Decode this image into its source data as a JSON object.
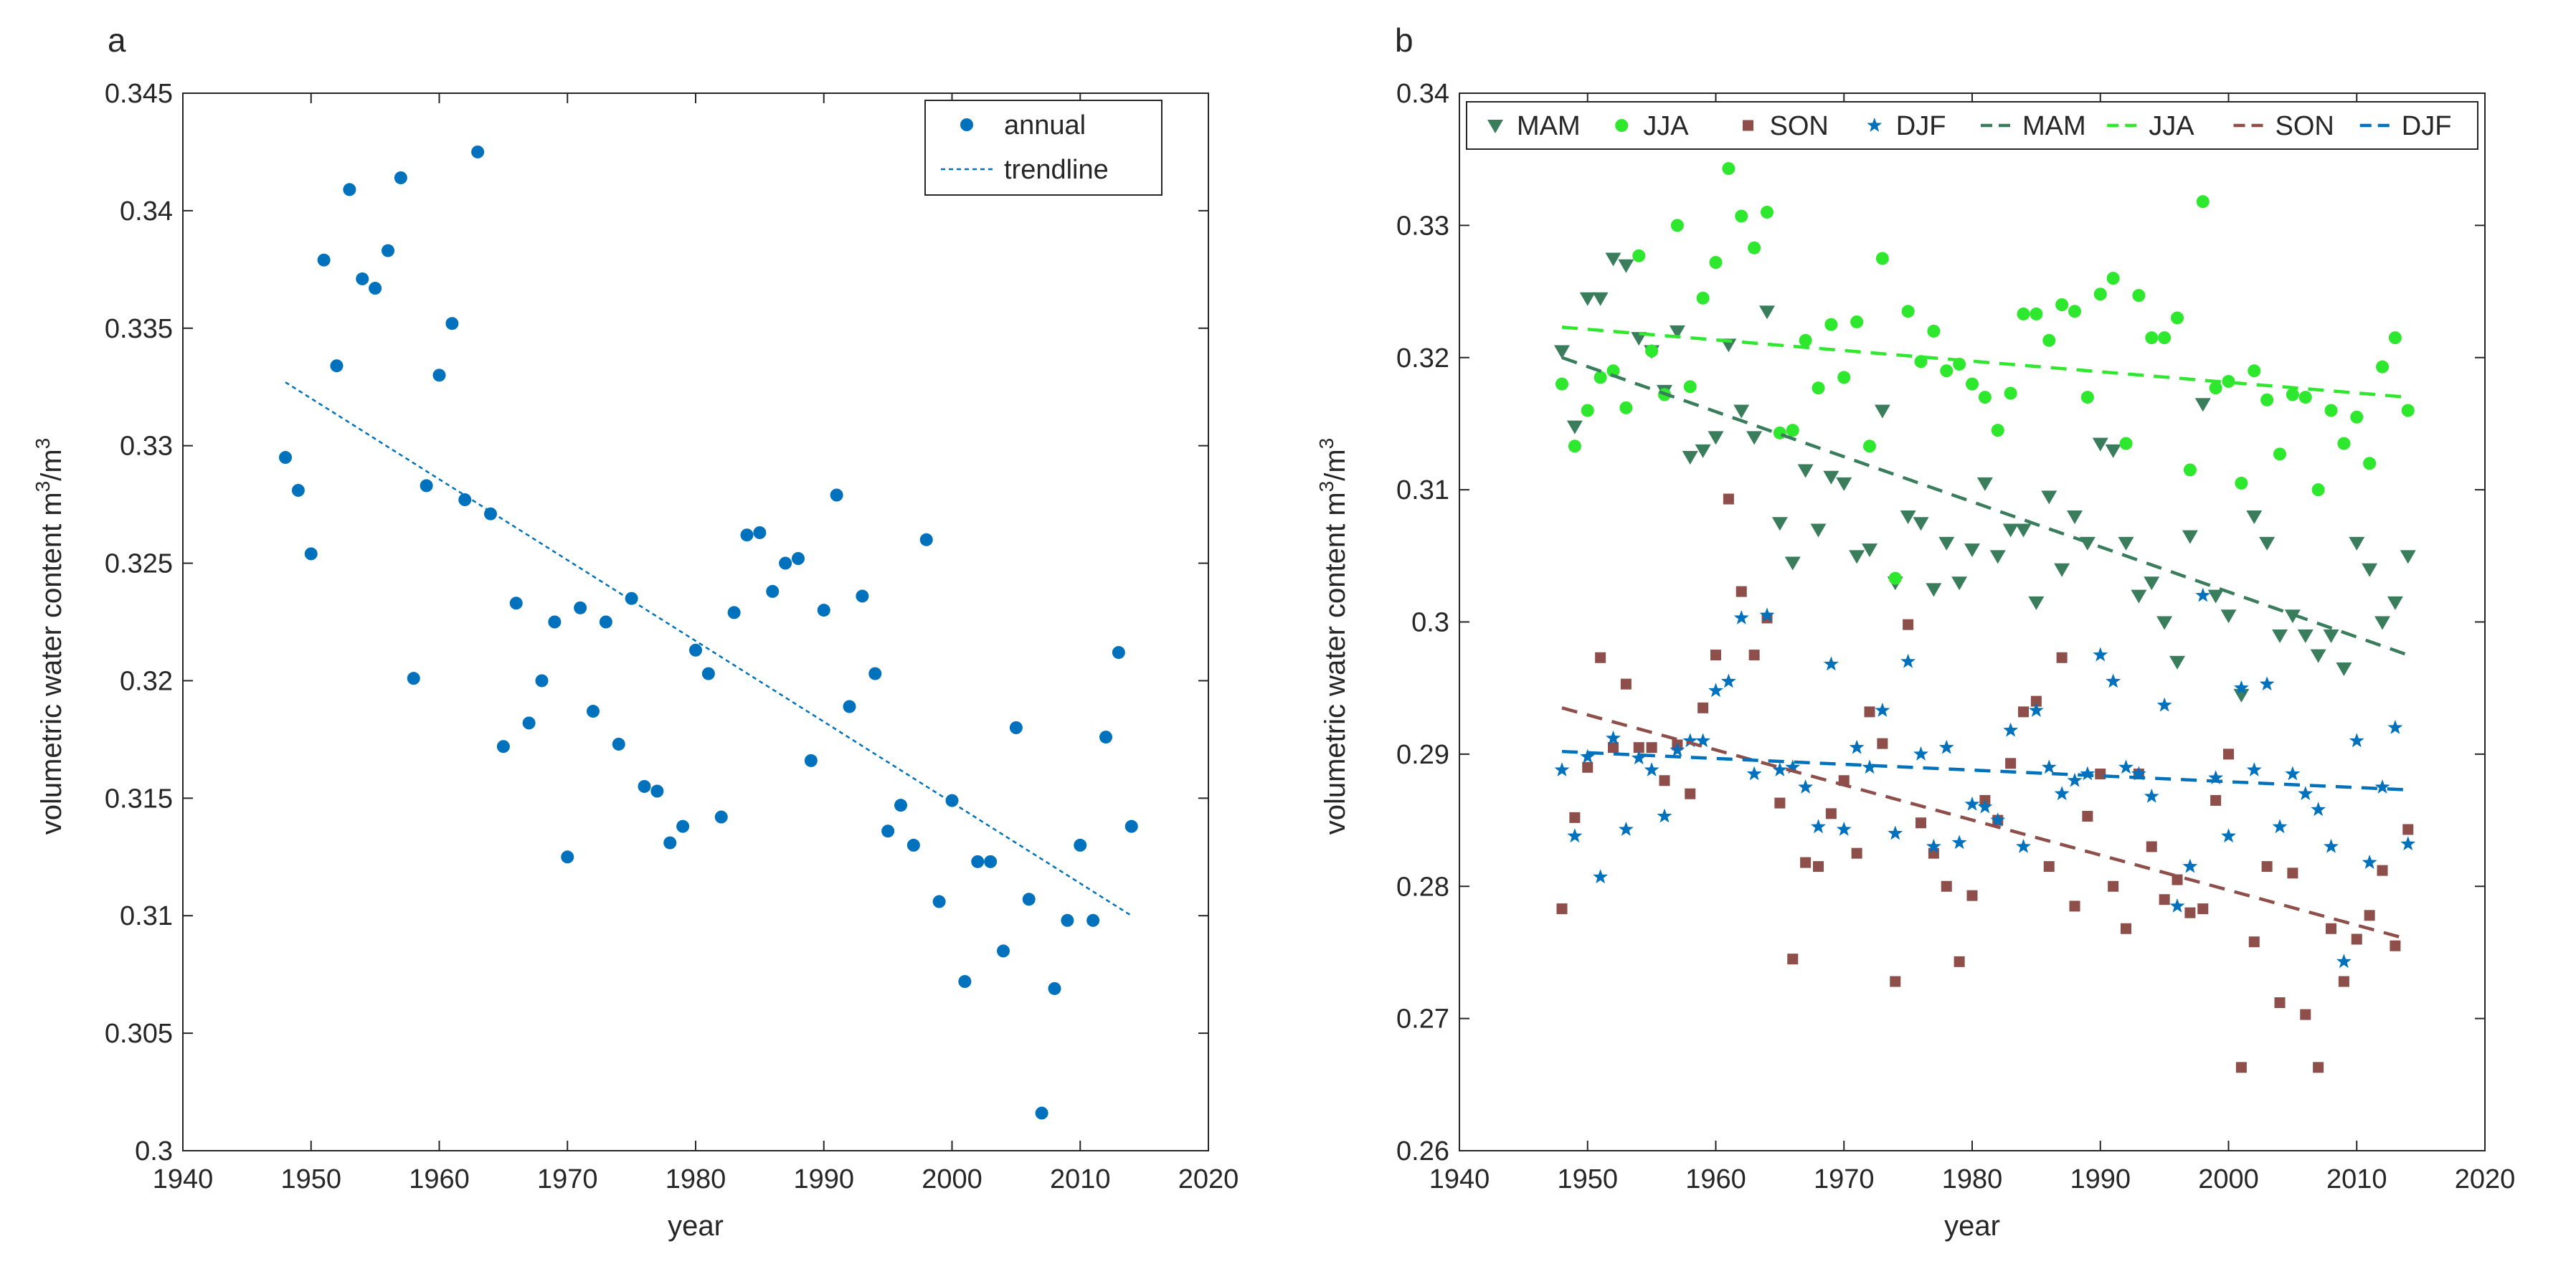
{
  "chart_data": [
    {
      "panel_label": "a",
      "type": "scatter",
      "xlabel": "year",
      "ylabel_main": "volumetric water content m",
      "ylabel_sup1": "3",
      "ylabel_mid": "/m",
      "ylabel_sup2": "3",
      "xlim": [
        1940,
        2020
      ],
      "ylim": [
        0.3,
        0.345
      ],
      "xticks": [
        1940,
        1950,
        1960,
        1970,
        1980,
        1990,
        2000,
        2010,
        2020
      ],
      "yticks": [
        0.3,
        0.305,
        0.31,
        0.315,
        0.32,
        0.325,
        0.33,
        0.335,
        0.34,
        0.345
      ],
      "xtick_labels": [
        "1940",
        "1950",
        "1960",
        "1970",
        "1980",
        "1990",
        "2000",
        "2010",
        "2020"
      ],
      "ytick_labels": [
        "0.3",
        "0.305",
        "0.31",
        "0.315",
        "0.32",
        "0.325",
        "0.33",
        "0.335",
        "0.34",
        "0.345"
      ],
      "legend_position": "top-right",
      "legend": [
        "annual",
        "trendline"
      ],
      "series": [
        {
          "name": "annual",
          "marker": "circle",
          "color": "#0072BD",
          "x": [
            1948,
            1949,
            1950,
            1951,
            1952,
            1953,
            1954,
            1955,
            1956,
            1957,
            1958,
            1959,
            1960,
            1961,
            1962,
            1963,
            1964,
            1965,
            1966,
            1967,
            1968,
            1969,
            1970,
            1971,
            1972,
            1973,
            1974,
            1975,
            1976,
            1977,
            1978,
            1979,
            1980,
            1981,
            1982,
            1983,
            1984,
            1985,
            1986,
            1987,
            1988,
            1989,
            1990,
            1991,
            1992,
            1993,
            1994,
            1995,
            1996,
            1997,
            1998,
            1999,
            2000,
            2001,
            2002,
            2003,
            2004,
            2005,
            2006,
            2007,
            2008,
            2009,
            2010,
            2011,
            2012,
            2013,
            2014
          ],
          "y": [
            0.3295,
            0.3281,
            0.3254,
            0.3379,
            0.3334,
            0.3409,
            0.3371,
            0.3367,
            0.3383,
            0.3414,
            0.3201,
            0.3283,
            0.333,
            0.3352,
            0.3277,
            0.3425,
            0.3271,
            0.3172,
            0.3233,
            0.3182,
            0.32,
            0.3225,
            0.3125,
            0.3231,
            0.3187,
            0.3225,
            0.3173,
            0.3235,
            0.3155,
            0.3153,
            0.3131,
            0.3138,
            0.3213,
            0.3203,
            0.3142,
            0.3229,
            0.3262,
            0.3263,
            0.3238,
            0.325,
            0.3252,
            0.3166,
            0.323,
            0.3279,
            0.3189,
            0.3236,
            0.3203,
            0.3136,
            0.3147,
            0.313,
            0.326,
            0.3106,
            0.3149,
            0.3072,
            0.3123,
            0.3123,
            0.3085,
            0.318,
            0.3107,
            0.3016,
            0.3069,
            0.3098,
            0.313,
            0.3098,
            0.3176,
            0.3212,
            0.3138
          ]
        },
        {
          "name": "trendline",
          "style": "dotted",
          "color": "#0072BD",
          "x": [
            1948,
            2014
          ],
          "y": [
            0.3327,
            0.31
          ]
        }
      ]
    },
    {
      "panel_label": "b",
      "type": "scatter",
      "xlabel": "year",
      "ylabel_main": "volumetric water content m",
      "ylabel_sup1": "3",
      "ylabel_mid": "/m",
      "ylabel_sup2": "3",
      "xlim": [
        1940,
        2020
      ],
      "ylim": [
        0.26,
        0.34
      ],
      "xticks": [
        1940,
        1950,
        1960,
        1970,
        1980,
        1990,
        2000,
        2010,
        2020
      ],
      "yticks": [
        0.26,
        0.27,
        0.28,
        0.29,
        0.3,
        0.31,
        0.32,
        0.33,
        0.34
      ],
      "xtick_labels": [
        "1940",
        "1950",
        "1960",
        "1970",
        "1980",
        "1990",
        "2000",
        "2010",
        "2020"
      ],
      "ytick_labels": [
        "0.26",
        "0.27",
        "0.28",
        "0.29",
        "0.3",
        "0.31",
        "0.32",
        "0.33",
        "0.34"
      ],
      "legend_position": "top",
      "legend": [
        "MAM",
        "JJA",
        "SON",
        "DJF",
        "MAM",
        "JJA",
        "SON",
        "DJF"
      ],
      "series": [
        {
          "name": "MAM",
          "marker": "triangle-down",
          "color": "#3A7D5C",
          "x": [
            1948,
            1949,
            1950,
            1951,
            1952,
            1953,
            1954,
            1955,
            1956,
            1957,
            1958,
            1959,
            1960,
            1961,
            1962,
            1963,
            1964,
            1965,
            1966,
            1967,
            1968,
            1969,
            1970,
            1971,
            1972,
            1973,
            1974,
            1975,
            1976,
            1977,
            1978,
            1979,
            1980,
            1981,
            1982,
            1983,
            1984,
            1985,
            1986,
            1987,
            1988,
            1989,
            1990,
            1991,
            1992,
            1993,
            1994,
            1995,
            1996,
            1997,
            1998,
            1999,
            2000,
            2001,
            2002,
            2003,
            2004,
            2005,
            2006,
            2007,
            2008,
            2009,
            2010,
            2011,
            2012,
            2013,
            2014
          ],
          "y": [
            0.3205,
            0.3148,
            0.3245,
            0.3245,
            0.3275,
            0.327,
            0.3215,
            0.3205,
            0.3175,
            0.322,
            0.3125,
            0.313,
            0.314,
            0.321,
            0.316,
            0.314,
            0.3235,
            0.3075,
            0.3045,
            0.3115,
            0.307,
            0.311,
            0.3105,
            0.305,
            0.3055,
            0.316,
            0.303,
            0.308,
            0.3075,
            0.3025,
            0.306,
            0.303,
            0.3055,
            0.3105,
            0.305,
            0.307,
            0.307,
            0.3015,
            0.3095,
            0.304,
            0.308,
            0.306,
            0.3135,
            0.313,
            0.306,
            0.302,
            0.303,
            0.3,
            0.297,
            0.3065,
            0.3165,
            0.302,
            0.3005,
            0.2945,
            0.308,
            0.306,
            0.299,
            0.3005,
            0.299,
            0.2975,
            0.299,
            0.2965,
            0.306,
            0.304,
            0.3,
            0.3015,
            0.305
          ]
        },
        {
          "name": "JJA",
          "marker": "circle",
          "color": "#2EE82E",
          "x": [
            1948,
            1949,
            1950,
            1951,
            1952,
            1953,
            1954,
            1955,
            1956,
            1957,
            1958,
            1959,
            1960,
            1961,
            1962,
            1963,
            1964,
            1965,
            1966,
            1967,
            1968,
            1969,
            1970,
            1971,
            1972,
            1973,
            1974,
            1975,
            1976,
            1977,
            1978,
            1979,
            1980,
            1981,
            1982,
            1983,
            1984,
            1985,
            1986,
            1987,
            1988,
            1989,
            1990,
            1991,
            1992,
            1993,
            1994,
            1995,
            1996,
            1997,
            1998,
            1999,
            2000,
            2001,
            2002,
            2003,
            2004,
            2005,
            2006,
            2007,
            2008,
            2009,
            2010,
            2011,
            2012,
            2013,
            2014
          ],
          "y": [
            0.318,
            0.3133,
            0.316,
            0.3185,
            0.319,
            0.3162,
            0.3277,
            0.3205,
            0.3172,
            0.33,
            0.3178,
            0.3245,
            0.3272,
            0.3343,
            0.3307,
            0.3283,
            0.331,
            0.3143,
            0.3145,
            0.3213,
            0.3177,
            0.3225,
            0.3185,
            0.3227,
            0.3133,
            0.3275,
            0.3033,
            0.3235,
            0.3197,
            0.322,
            0.319,
            0.3195,
            0.318,
            0.317,
            0.3145,
            0.3173,
            0.3233,
            0.3233,
            0.3213,
            0.324,
            0.3235,
            0.317,
            0.3248,
            0.326,
            0.3135,
            0.3247,
            0.3215,
            0.3215,
            0.323,
            0.3115,
            0.3318,
            0.3177,
            0.3182,
            0.3105,
            0.319,
            0.3168,
            0.3127,
            0.3172,
            0.317,
            0.31,
            0.316,
            0.3135,
            0.3155,
            0.312,
            0.3193,
            0.3215,
            0.316
          ]
        },
        {
          "name": "SON",
          "marker": "square",
          "color": "#8E4F4B",
          "x": [
            1948,
            1949,
            1950,
            1951,
            1952,
            1953,
            1954,
            1955,
            1956,
            1957,
            1958,
            1959,
            1960,
            1961,
            1962,
            1963,
            1964,
            1965,
            1966,
            1967,
            1968,
            1969,
            1970,
            1971,
            1972,
            1973,
            1974,
            1975,
            1976,
            1977,
            1978,
            1979,
            1980,
            1981,
            1982,
            1983,
            1984,
            1985,
            1986,
            1987,
            1988,
            1989,
            1990,
            1991,
            1992,
            1993,
            1994,
            1995,
            1996,
            1997,
            1998,
            1999,
            2000,
            2001,
            2002,
            2003,
            2004,
            2005,
            2006,
            2007,
            2008,
            2009,
            2010,
            2011,
            2012,
            2013,
            2014
          ],
          "y": [
            0.2783,
            0.2852,
            0.289,
            0.2973,
            0.2905,
            0.2953,
            0.2905,
            0.2905,
            0.288,
            0.2907,
            0.287,
            0.2935,
            0.2975,
            0.3093,
            0.3023,
            0.2975,
            0.3003,
            0.2863,
            0.2745,
            0.2818,
            0.2815,
            0.2855,
            0.288,
            0.2825,
            0.2932,
            0.2908,
            0.2728,
            0.2998,
            0.2848,
            0.2825,
            0.28,
            0.2743,
            0.2793,
            0.2865,
            0.285,
            0.2893,
            0.2932,
            0.294,
            0.2815,
            0.2973,
            0.2785,
            0.2853,
            0.2885,
            0.28,
            0.2768,
            0.2885,
            0.283,
            0.279,
            0.2805,
            0.278,
            0.2783,
            0.2865,
            0.29,
            0.2663,
            0.2758,
            0.2815,
            0.2712,
            0.281,
            0.2703,
            0.2663,
            0.2768,
            0.2728,
            0.276,
            0.2778,
            0.2812,
            0.2755,
            0.2843
          ]
        },
        {
          "name": "DJF",
          "marker": "star",
          "color": "#0072BD",
          "x": [
            1948,
            1949,
            1950,
            1951,
            1952,
            1953,
            1954,
            1955,
            1956,
            1957,
            1958,
            1959,
            1960,
            1961,
            1962,
            1963,
            1964,
            1965,
            1966,
            1967,
            1968,
            1969,
            1970,
            1971,
            1972,
            1973,
            1974,
            1975,
            1976,
            1977,
            1978,
            1979,
            1980,
            1981,
            1982,
            1983,
            1984,
            1985,
            1986,
            1987,
            1988,
            1989,
            1990,
            1991,
            1992,
            1993,
            1994,
            1995,
            1996,
            1997,
            1998,
            1999,
            2000,
            2001,
            2002,
            2003,
            2004,
            2005,
            2006,
            2007,
            2008,
            2009,
            2010,
            2011,
            2012,
            2013,
            2014
          ],
          "y": [
            0.2888,
            0.2838,
            0.2898,
            0.2807,
            0.2912,
            0.2843,
            0.2897,
            0.2888,
            0.2853,
            0.2903,
            0.291,
            0.291,
            0.2948,
            0.2955,
            0.3003,
            0.2885,
            0.3005,
            0.2888,
            0.289,
            0.2875,
            0.2845,
            0.2968,
            0.2843,
            0.2905,
            0.289,
            0.2933,
            0.284,
            0.297,
            0.29,
            0.283,
            0.2905,
            0.2833,
            0.2862,
            0.286,
            0.285,
            0.2918,
            0.283,
            0.2933,
            0.289,
            0.287,
            0.288,
            0.2885,
            0.2975,
            0.2955,
            0.289,
            0.2885,
            0.2868,
            0.2937,
            0.2785,
            0.2815,
            0.302,
            0.2882,
            0.2838,
            0.295,
            0.2888,
            0.2953,
            0.2845,
            0.2885,
            0.287,
            0.2858,
            0.283,
            0.2743,
            0.291,
            0.2818,
            0.2875,
            0.292,
            0.2832
          ]
        },
        {
          "name": "MAM",
          "style": "dashed",
          "color": "#3A7D5C",
          "x": [
            1948,
            2014
          ],
          "y": [
            0.32,
            0.2975
          ]
        },
        {
          "name": "JJA",
          "style": "dashed",
          "color": "#2EE82E",
          "x": [
            1948,
            2014
          ],
          "y": [
            0.3223,
            0.317
          ]
        },
        {
          "name": "SON",
          "style": "dashed",
          "color": "#8E4F4B",
          "x": [
            1948,
            2014
          ],
          "y": [
            0.2935,
            0.276
          ]
        },
        {
          "name": "DJF",
          "style": "dashed",
          "color": "#0072BD",
          "x": [
            1948,
            2014
          ],
          "y": [
            0.2902,
            0.2873
          ]
        }
      ]
    }
  ]
}
